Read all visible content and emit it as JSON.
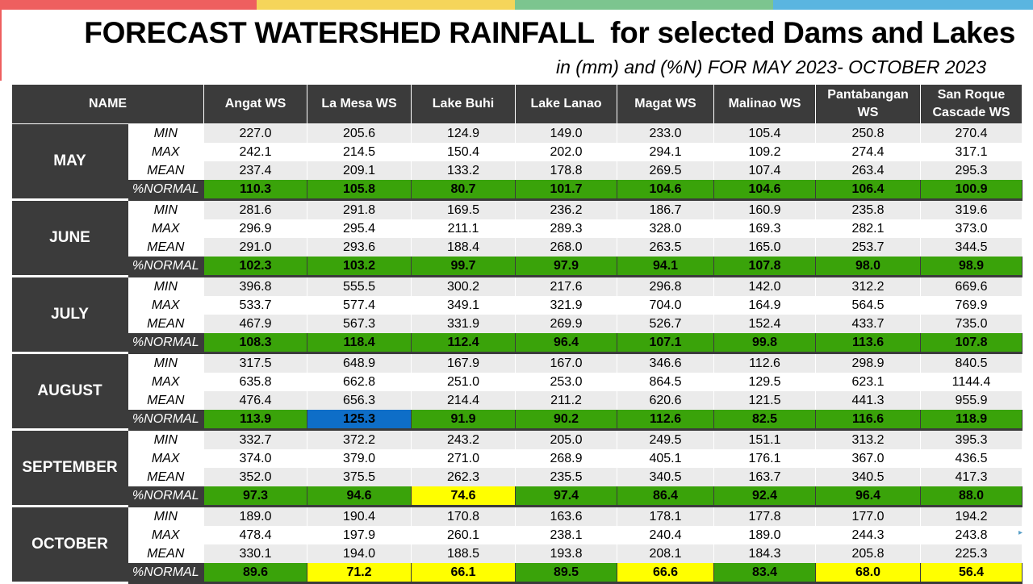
{
  "header": {
    "title": "FORECAST WATERSHED RAINFALL  for selected Dams and Lakes",
    "subtitle": "in (mm) and (%N) FOR MAY 2023- OCTOBER 2023",
    "bar_colors": [
      "#ee5f5f",
      "#f5d55a",
      "#7cc58f",
      "#5ab5e0"
    ]
  },
  "table": {
    "name_header": "NAME",
    "columns": [
      "Angat WS",
      "La Mesa WS",
      "Lake Buhi",
      "Lake Lanao",
      "Magat WS",
      "Malinao WS",
      "Pantabangan WS",
      "San Roque Cascade WS"
    ],
    "stat_labels": [
      "MIN",
      "MAX",
      "MEAN"
    ],
    "normal_label": "%NORMAL",
    "colors": {
      "green": "#3aa30a",
      "yellow": "#ffff00",
      "blue": "#0e6ec8",
      "dark": "#3b3b3b"
    },
    "months": [
      {
        "name": "MAY",
        "min": [
          "227.0",
          "205.6",
          "124.9",
          "149.0",
          "233.0",
          "105.4",
          "250.8",
          "270.4"
        ],
        "max": [
          "242.1",
          "214.5",
          "150.4",
          "202.0",
          "294.1",
          "109.2",
          "274.4",
          "317.1"
        ],
        "mean": [
          "237.4",
          "209.1",
          "133.2",
          "178.8",
          "269.5",
          "107.4",
          "263.4",
          "295.3"
        ],
        "normal": [
          "110.3",
          "105.8",
          "80.7",
          "101.7",
          "104.6",
          "104.6",
          "106.4",
          "100.9"
        ],
        "normal_colors": [
          "green",
          "green",
          "green",
          "green",
          "green",
          "green",
          "green",
          "green"
        ]
      },
      {
        "name": "JUNE",
        "min": [
          "281.6",
          "291.8",
          "169.5",
          "236.2",
          "186.7",
          "160.9",
          "235.8",
          "319.6"
        ],
        "max": [
          "296.9",
          "295.4",
          "211.1",
          "289.3",
          "328.0",
          "169.3",
          "282.1",
          "373.0"
        ],
        "mean": [
          "291.0",
          "293.6",
          "188.4",
          "268.0",
          "263.5",
          "165.0",
          "253.7",
          "344.5"
        ],
        "normal": [
          "102.3",
          "103.2",
          "99.7",
          "97.9",
          "94.1",
          "107.8",
          "98.0",
          "98.9"
        ],
        "normal_colors": [
          "green",
          "green",
          "green",
          "green",
          "green",
          "green",
          "green",
          "green"
        ]
      },
      {
        "name": "JULY",
        "min": [
          "396.8",
          "555.5",
          "300.2",
          "217.6",
          "296.8",
          "142.0",
          "312.2",
          "669.6"
        ],
        "max": [
          "533.7",
          "577.4",
          "349.1",
          "321.9",
          "704.0",
          "164.9",
          "564.5",
          "769.9"
        ],
        "mean": [
          "467.9",
          "567.3",
          "331.9",
          "269.9",
          "526.7",
          "152.4",
          "433.7",
          "735.0"
        ],
        "normal": [
          "108.3",
          "118.4",
          "112.4",
          "96.4",
          "107.1",
          "99.8",
          "113.6",
          "107.8"
        ],
        "normal_colors": [
          "green",
          "green",
          "green",
          "green",
          "green",
          "green",
          "green",
          "green"
        ]
      },
      {
        "name": "AUGUST",
        "min": [
          "317.5",
          "648.9",
          "167.9",
          "167.0",
          "346.6",
          "112.6",
          "298.9",
          "840.5"
        ],
        "max": [
          "635.8",
          "662.8",
          "251.0",
          "253.0",
          "864.5",
          "129.5",
          "623.1",
          "1144.4"
        ],
        "mean": [
          "476.4",
          "656.3",
          "214.4",
          "211.2",
          "620.6",
          "121.5",
          "441.3",
          "955.9"
        ],
        "normal": [
          "113.9",
          "125.3",
          "91.9",
          "90.2",
          "112.6",
          "82.5",
          "116.6",
          "118.9"
        ],
        "normal_colors": [
          "green",
          "blue",
          "green",
          "green",
          "green",
          "green",
          "green",
          "green"
        ]
      },
      {
        "name": "SEPTEMBER",
        "min": [
          "332.7",
          "372.2",
          "243.2",
          "205.0",
          "249.5",
          "151.1",
          "313.2",
          "395.3"
        ],
        "max": [
          "374.0",
          "379.0",
          "271.0",
          "268.9",
          "405.1",
          "176.1",
          "367.0",
          "436.5"
        ],
        "mean": [
          "352.0",
          "375.5",
          "262.3",
          "235.5",
          "340.5",
          "163.7",
          "340.5",
          "417.3"
        ],
        "normal": [
          "97.3",
          "94.6",
          "74.6",
          "97.4",
          "86.4",
          "92.4",
          "96.4",
          "88.0"
        ],
        "normal_colors": [
          "green",
          "green",
          "yellow",
          "green",
          "green",
          "green",
          "green",
          "green"
        ]
      },
      {
        "name": "OCTOBER",
        "min": [
          "189.0",
          "190.4",
          "170.8",
          "163.6",
          "178.1",
          "177.8",
          "177.0",
          "194.2"
        ],
        "max": [
          "478.4",
          "197.9",
          "260.1",
          "238.1",
          "240.4",
          "189.0",
          "244.3",
          "243.8"
        ],
        "mean": [
          "330.1",
          "194.0",
          "188.5",
          "193.8",
          "208.1",
          "184.3",
          "205.8",
          "225.3"
        ],
        "normal": [
          "89.6",
          "71.2",
          "66.1",
          "89.5",
          "66.6",
          "83.4",
          "68.0",
          "56.4"
        ],
        "normal_colors": [
          "green",
          "yellow",
          "yellow",
          "green",
          "yellow",
          "green",
          "yellow",
          "yellow"
        ]
      }
    ]
  }
}
